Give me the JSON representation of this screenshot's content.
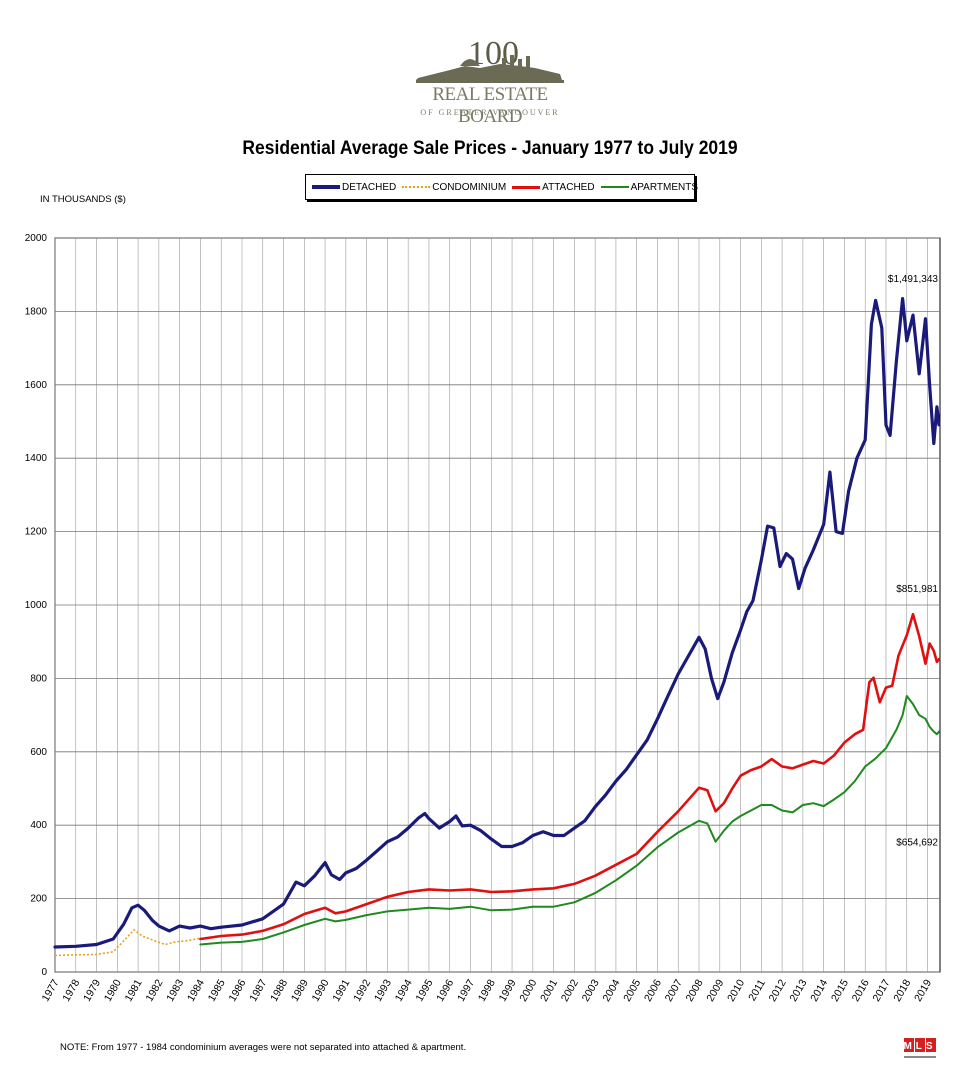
{
  "logo": {
    "name": "REAL ESTATE BOARD",
    "sub": "OF GREATER VANCOUVER",
    "badge": "100"
  },
  "title": "Residential Average Sale Prices  -  January 1977 to July 2019",
  "units_label": "IN THOUSANDS ($)",
  "note": "NOTE:  From 1977 - 1984 condominium averages were not separated into attached & apartment.",
  "mls_label": "MLS",
  "legend": [
    {
      "label": "DETACHED",
      "color": "#1a1a7a",
      "style": "thick"
    },
    {
      "label": "CONDOMINIUM",
      "color": "#e8a020",
      "style": "dotted"
    },
    {
      "label": "ATTACHED",
      "color": "#e01010",
      "style": "solid"
    },
    {
      "label": "APARTMENTS",
      "color": "#1f8a1f",
      "style": "solid"
    }
  ],
  "chart_data": {
    "type": "line",
    "title": "Residential Average Sale Prices  -  January 1977 to July 2019",
    "ylabel": "IN THOUSANDS ($)",
    "ylim": [
      0,
      2000
    ],
    "xlim": [
      1977,
      2019.6
    ],
    "yticks": [
      0,
      200,
      400,
      600,
      800,
      1000,
      1200,
      1400,
      1600,
      1800,
      2000
    ],
    "xticks": [
      "1977",
      "1978",
      "1979",
      "1980",
      "1981",
      "1982",
      "1983",
      "1984",
      "1985",
      "1986",
      "1987",
      "1988",
      "1989",
      "1990",
      "1991",
      "1992",
      "1993",
      "1994",
      "1995",
      "1996",
      "1997",
      "1998",
      "1999",
      "2000",
      "2001",
      "2002",
      "2003",
      "2004",
      "2005",
      "2006",
      "2007",
      "2008",
      "2009",
      "2010",
      "2011",
      "2012",
      "2013",
      "2014",
      "2015",
      "2016",
      "2017",
      "2018",
      "2019"
    ],
    "grid": true,
    "annotations": [
      {
        "text": "$1,491,343",
        "x": 2019.55,
        "y": 1880
      },
      {
        "text": "$851,981",
        "x": 2019.55,
        "y": 1035
      },
      {
        "text": "$654,692",
        "x": 2019.55,
        "y": 345
      }
    ],
    "series": [
      {
        "name": "DETACHED",
        "color": "#1a1a7a",
        "width": 3.2,
        "points": [
          [
            1977,
            68
          ],
          [
            1978,
            70
          ],
          [
            1979,
            75
          ],
          [
            1979.8,
            90
          ],
          [
            1980.3,
            130
          ],
          [
            1980.7,
            175
          ],
          [
            1981,
            182
          ],
          [
            1981.3,
            168
          ],
          [
            1981.7,
            140
          ],
          [
            1982,
            125
          ],
          [
            1982.5,
            112
          ],
          [
            1983,
            125
          ],
          [
            1983.5,
            120
          ],
          [
            1984,
            125
          ],
          [
            1984.5,
            118
          ],
          [
            1985,
            122
          ],
          [
            1986,
            128
          ],
          [
            1987,
            145
          ],
          [
            1988,
            185
          ],
          [
            1988.6,
            245
          ],
          [
            1989,
            235
          ],
          [
            1989.5,
            262
          ],
          [
            1990,
            298
          ],
          [
            1990.3,
            265
          ],
          [
            1990.7,
            252
          ],
          [
            1991,
            270
          ],
          [
            1991.5,
            282
          ],
          [
            1992,
            305
          ],
          [
            1992.5,
            330
          ],
          [
            1993,
            355
          ],
          [
            1993.5,
            368
          ],
          [
            1994,
            392
          ],
          [
            1994.5,
            420
          ],
          [
            1994.8,
            432
          ],
          [
            1995,
            418
          ],
          [
            1995.5,
            392
          ],
          [
            1996,
            410
          ],
          [
            1996.3,
            425
          ],
          [
            1996.6,
            398
          ],
          [
            1997,
            400
          ],
          [
            1997.5,
            385
          ],
          [
            1998,
            362
          ],
          [
            1998.5,
            342
          ],
          [
            1999,
            342
          ],
          [
            1999.5,
            352
          ],
          [
            2000,
            372
          ],
          [
            2000.5,
            382
          ],
          [
            2001,
            372
          ],
          [
            2001.5,
            372
          ],
          [
            2002,
            392
          ],
          [
            2002.5,
            412
          ],
          [
            2003,
            450
          ],
          [
            2003.5,
            482
          ],
          [
            2004,
            520
          ],
          [
            2004.5,
            552
          ],
          [
            2005,
            592
          ],
          [
            2005.5,
            632
          ],
          [
            2006,
            690
          ],
          [
            2006.5,
            752
          ],
          [
            2007,
            812
          ],
          [
            2007.5,
            862
          ],
          [
            2008,
            912
          ],
          [
            2008.3,
            880
          ],
          [
            2008.6,
            800
          ],
          [
            2008.9,
            745
          ],
          [
            2009.2,
            790
          ],
          [
            2009.6,
            870
          ],
          [
            2010,
            932
          ],
          [
            2010.3,
            982
          ],
          [
            2010.6,
            1012
          ],
          [
            2011,
            1122
          ],
          [
            2011.3,
            1215
          ],
          [
            2011.6,
            1210
          ],
          [
            2011.9,
            1105
          ],
          [
            2012.2,
            1140
          ],
          [
            2012.5,
            1125
          ],
          [
            2012.8,
            1045
          ],
          [
            2013.1,
            1100
          ],
          [
            2013.5,
            1150
          ],
          [
            2014,
            1220
          ],
          [
            2014.3,
            1362
          ],
          [
            2014.6,
            1200
          ],
          [
            2014.9,
            1195
          ],
          [
            2015.2,
            1310
          ],
          [
            2015.6,
            1400
          ],
          [
            2016,
            1450
          ],
          [
            2016.3,
            1765
          ],
          [
            2016.5,
            1830
          ],
          [
            2016.8,
            1755
          ],
          [
            2017,
            1490
          ],
          [
            2017.2,
            1462
          ],
          [
            2017.5,
            1665
          ],
          [
            2017.8,
            1835
          ],
          [
            2018,
            1720
          ],
          [
            2018.3,
            1790
          ],
          [
            2018.6,
            1630
          ],
          [
            2018.9,
            1780
          ],
          [
            2019.1,
            1600
          ],
          [
            2019.3,
            1440
          ],
          [
            2019.45,
            1540
          ],
          [
            2019.55,
            1491
          ]
        ]
      },
      {
        "name": "CONDOMINIUM",
        "color": "#e8a020",
        "width": 1.6,
        "dotted": true,
        "points": [
          [
            1977,
            45
          ],
          [
            1978,
            47
          ],
          [
            1979,
            48
          ],
          [
            1979.8,
            55
          ],
          [
            1980.4,
            90
          ],
          [
            1980.8,
            115
          ],
          [
            1981.2,
            98
          ],
          [
            1981.8,
            85
          ],
          [
            1982.3,
            75
          ],
          [
            1982.8,
            82
          ],
          [
            1983.3,
            85
          ],
          [
            1983.8,
            90
          ],
          [
            1984,
            92
          ]
        ]
      },
      {
        "name": "ATTACHED",
        "color": "#e01010",
        "width": 2.6,
        "points": [
          [
            1984,
            90
          ],
          [
            1985,
            98
          ],
          [
            1986,
            102
          ],
          [
            1987,
            112
          ],
          [
            1988,
            130
          ],
          [
            1989,
            158
          ],
          [
            1990,
            175
          ],
          [
            1990.5,
            160
          ],
          [
            1991,
            165
          ],
          [
            1992,
            185
          ],
          [
            1993,
            205
          ],
          [
            1994,
            218
          ],
          [
            1995,
            225
          ],
          [
            1996,
            222
          ],
          [
            1997,
            225
          ],
          [
            1998,
            218
          ],
          [
            1999,
            220
          ],
          [
            2000,
            225
          ],
          [
            2001,
            228
          ],
          [
            2002,
            240
          ],
          [
            2003,
            262
          ],
          [
            2004,
            292
          ],
          [
            2005,
            322
          ],
          [
            2006,
            382
          ],
          [
            2007,
            438
          ],
          [
            2008,
            502
          ],
          [
            2008.4,
            495
          ],
          [
            2008.8,
            438
          ],
          [
            2009.2,
            460
          ],
          [
            2009.6,
            500
          ],
          [
            2010,
            535
          ],
          [
            2010.5,
            550
          ],
          [
            2011,
            560
          ],
          [
            2011.5,
            580
          ],
          [
            2012,
            560
          ],
          [
            2012.5,
            555
          ],
          [
            2013,
            565
          ],
          [
            2013.5,
            575
          ],
          [
            2014,
            568
          ],
          [
            2014.5,
            590
          ],
          [
            2015,
            625
          ],
          [
            2015.5,
            648
          ],
          [
            2015.9,
            660
          ],
          [
            2016.2,
            790
          ],
          [
            2016.4,
            802
          ],
          [
            2016.7,
            735
          ],
          [
            2017,
            775
          ],
          [
            2017.3,
            780
          ],
          [
            2017.6,
            862
          ],
          [
            2018,
            918
          ],
          [
            2018.3,
            975
          ],
          [
            2018.6,
            915
          ],
          [
            2018.9,
            840
          ],
          [
            2019.1,
            895
          ],
          [
            2019.3,
            875
          ],
          [
            2019.45,
            845
          ],
          [
            2019.55,
            852
          ]
        ]
      },
      {
        "name": "APARTMENTS",
        "color": "#1f8a1f",
        "width": 2,
        "points": [
          [
            1984,
            75
          ],
          [
            1985,
            80
          ],
          [
            1986,
            82
          ],
          [
            1987,
            90
          ],
          [
            1988,
            108
          ],
          [
            1989,
            128
          ],
          [
            1990,
            145
          ],
          [
            1990.5,
            138
          ],
          [
            1991,
            142
          ],
          [
            1992,
            155
          ],
          [
            1993,
            165
          ],
          [
            1994,
            170
          ],
          [
            1995,
            175
          ],
          [
            1996,
            172
          ],
          [
            1997,
            178
          ],
          [
            1998,
            168
          ],
          [
            1999,
            170
          ],
          [
            2000,
            178
          ],
          [
            2001,
            178
          ],
          [
            2002,
            190
          ],
          [
            2003,
            215
          ],
          [
            2004,
            250
          ],
          [
            2005,
            290
          ],
          [
            2006,
            340
          ],
          [
            2007,
            380
          ],
          [
            2008,
            412
          ],
          [
            2008.4,
            405
          ],
          [
            2008.8,
            355
          ],
          [
            2009.2,
            385
          ],
          [
            2009.6,
            410
          ],
          [
            2010,
            425
          ],
          [
            2010.5,
            440
          ],
          [
            2011,
            455
          ],
          [
            2011.5,
            455
          ],
          [
            2012,
            440
          ],
          [
            2012.5,
            435
          ],
          [
            2013,
            455
          ],
          [
            2013.5,
            460
          ],
          [
            2014,
            452
          ],
          [
            2014.5,
            470
          ],
          [
            2015,
            490
          ],
          [
            2015.5,
            520
          ],
          [
            2016,
            560
          ],
          [
            2016.5,
            582
          ],
          [
            2017,
            610
          ],
          [
            2017.5,
            660
          ],
          [
            2017.8,
            700
          ],
          [
            2018,
            752
          ],
          [
            2018.3,
            730
          ],
          [
            2018.6,
            700
          ],
          [
            2018.9,
            690
          ],
          [
            2019.1,
            668
          ],
          [
            2019.3,
            655
          ],
          [
            2019.45,
            648
          ],
          [
            2019.55,
            655
          ]
        ]
      }
    ]
  }
}
